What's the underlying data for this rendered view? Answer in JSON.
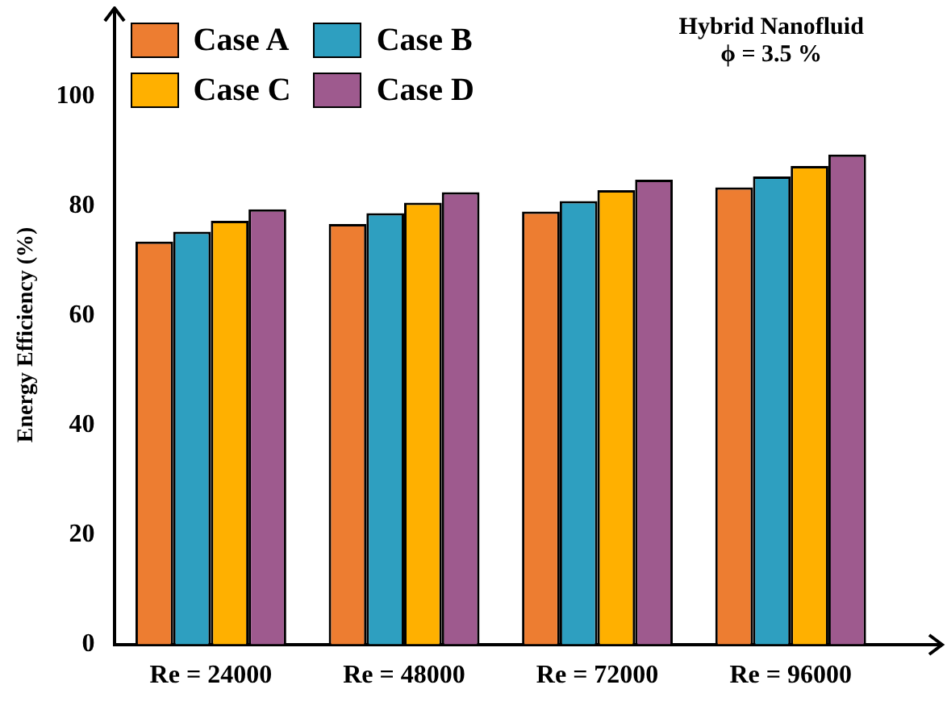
{
  "chart_data": {
    "type": "bar",
    "ylabel": "Energy Efficiency (%)",
    "categories": [
      "Re = 24000",
      "Re = 48000",
      "Re = 72000",
      "Re = 96000"
    ],
    "series": [
      {
        "name": "Case A",
        "color": "#ed7d31",
        "values": [
          73.5,
          76.7,
          79.0,
          83.4
        ]
      },
      {
        "name": "Case B",
        "color": "#2e9fc0",
        "values": [
          75.3,
          78.7,
          80.9,
          85.4
        ]
      },
      {
        "name": "Case C",
        "color": "#ffb000",
        "values": [
          77.3,
          80.6,
          82.9,
          87.3
        ]
      },
      {
        "name": "Case D",
        "color": "#9e5a8e",
        "values": [
          79.4,
          82.5,
          84.8,
          89.4
        ]
      }
    ],
    "ylim": [
      0,
      113
    ],
    "yticks": [
      0,
      20,
      40,
      60,
      80,
      100
    ],
    "grid": false,
    "legend": "top left",
    "annotations": [
      "Hybrid Nanofluid",
      "ϕ = 3.5 %"
    ]
  }
}
